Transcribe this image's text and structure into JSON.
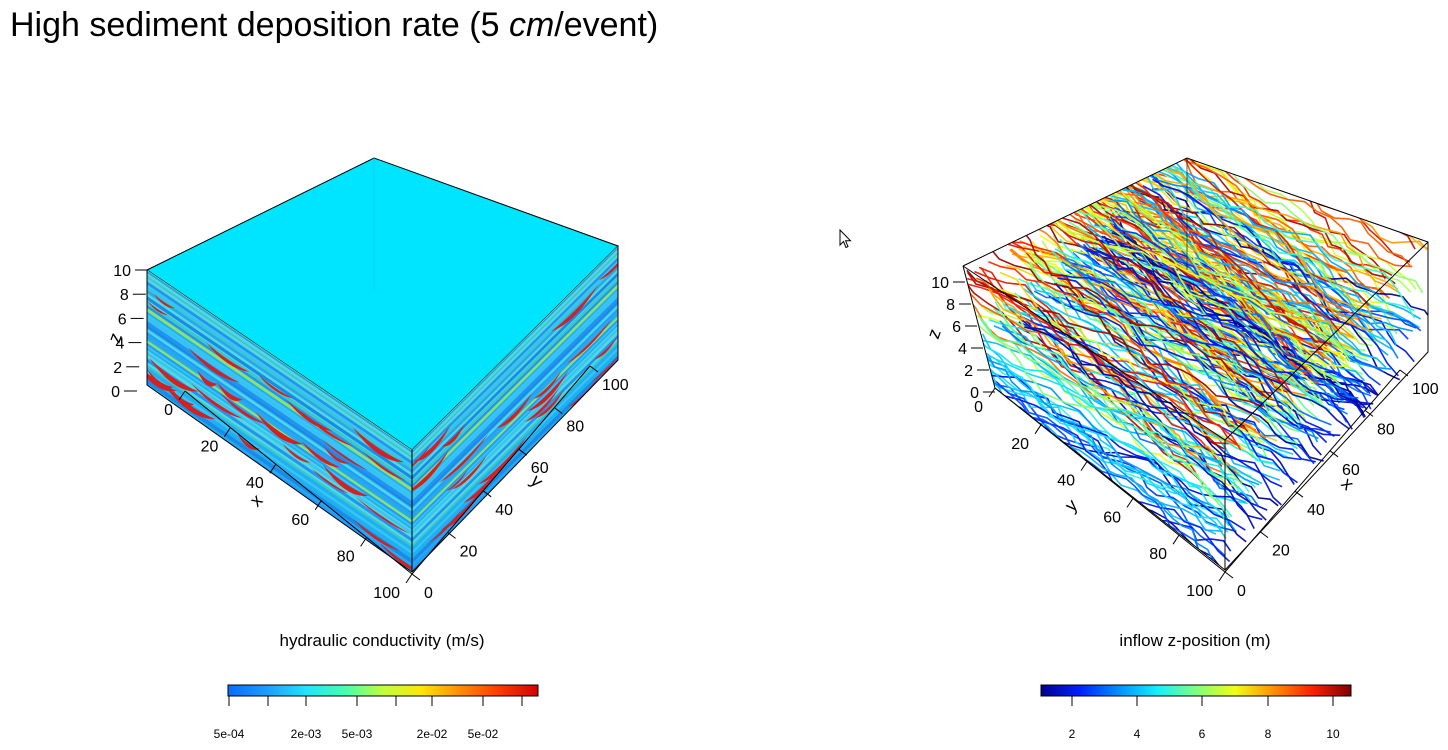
{
  "page": {
    "title_prefix": "High sediment deposition rate (5 ",
    "title_unit": "cm",
    "title_suffix": "/event)"
  },
  "left_plot": {
    "caption": "hydraulic conductivity (m/s)",
    "z_label": "z",
    "x_label": "x",
    "y_label": "y",
    "z_ticks": [
      "10",
      "8",
      "6",
      "4",
      "2",
      "0"
    ],
    "x_ticks": [
      "0",
      "20",
      "40",
      "60",
      "80",
      "100"
    ],
    "y_ticks": [
      "0",
      "20",
      "40",
      "60",
      "80",
      "100"
    ],
    "top_color": "#00e5ff",
    "side_base_color": "#2ba8ee",
    "lens_color": "#d32020"
  },
  "left_colorbar": {
    "tick_labels": [
      "5e-04",
      "2e-03",
      "5e-03",
      "2e-02",
      "5e-02"
    ],
    "colors": [
      "#0a6cff",
      "#1e9cff",
      "#1ee4ff",
      "#42ffb0",
      "#bfff3c",
      "#ffe600",
      "#ff8c00",
      "#ff3a00",
      "#d40000"
    ]
  },
  "right_plot": {
    "caption": "inflow z-position (m)",
    "z_label": "z",
    "x_label": "x",
    "y_label": "y",
    "z_ticks": [
      "10",
      "8",
      "6",
      "4",
      "2",
      "0"
    ],
    "y_ticks": [
      "0",
      "20",
      "40",
      "60",
      "80",
      "100"
    ],
    "x_ticks": [
      "0",
      "20",
      "40",
      "60",
      "80",
      "100"
    ]
  },
  "right_colorbar": {
    "tick_labels": [
      "2",
      "4",
      "6",
      "8",
      "10"
    ],
    "colors": [
      "#00008f",
      "#0020ff",
      "#0090ff",
      "#10f0ff",
      "#7fff80",
      "#f0ff10",
      "#ff9000",
      "#ff2000",
      "#7f0000"
    ]
  }
}
